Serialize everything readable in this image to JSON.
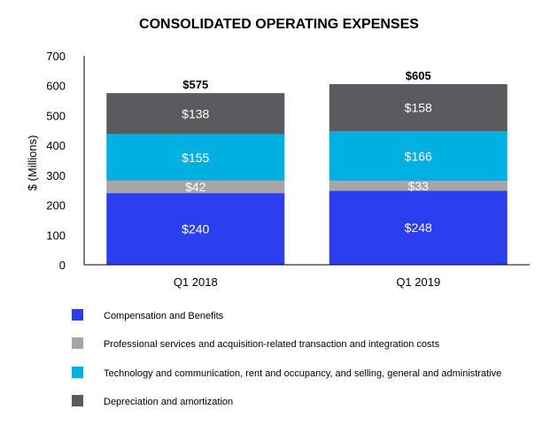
{
  "chart_data": {
    "type": "bar",
    "stacked": true,
    "title": "CONSOLIDATED OPERATING EXPENSES",
    "xlabel": "",
    "ylabel": "$ (Millions)",
    "ylim": [
      0,
      700
    ],
    "yticks": [
      "0",
      "100",
      "200",
      "300",
      "400",
      "500",
      "600",
      "700"
    ],
    "categories": [
      "Q1 2018",
      "Q1 2019"
    ],
    "series": [
      {
        "name": "Compensation and Benefits",
        "values": [
          240,
          248
        ],
        "labels": [
          "$240",
          "$248"
        ],
        "color": "#2b3ff0"
      },
      {
        "name": "Professional services and acquisition-related transaction and integration costs",
        "values": [
          42,
          33
        ],
        "labels": [
          "$42",
          "$33"
        ],
        "color": "#a6a6a6"
      },
      {
        "name": "Technology and communication, rent and occupancy, and selling, general and administrative",
        "values": [
          155,
          166
        ],
        "labels": [
          "$155",
          "$166"
        ],
        "color": "#00b0e0"
      },
      {
        "name": "Depreciation and amortization",
        "values": [
          138,
          158
        ],
        "labels": [
          "$138",
          "$158"
        ],
        "color": "#595b5e"
      }
    ],
    "totals": [
      575,
      605
    ],
    "total_labels": [
      "$575",
      "$605"
    ],
    "legend_position": "bottom",
    "grid": false
  }
}
